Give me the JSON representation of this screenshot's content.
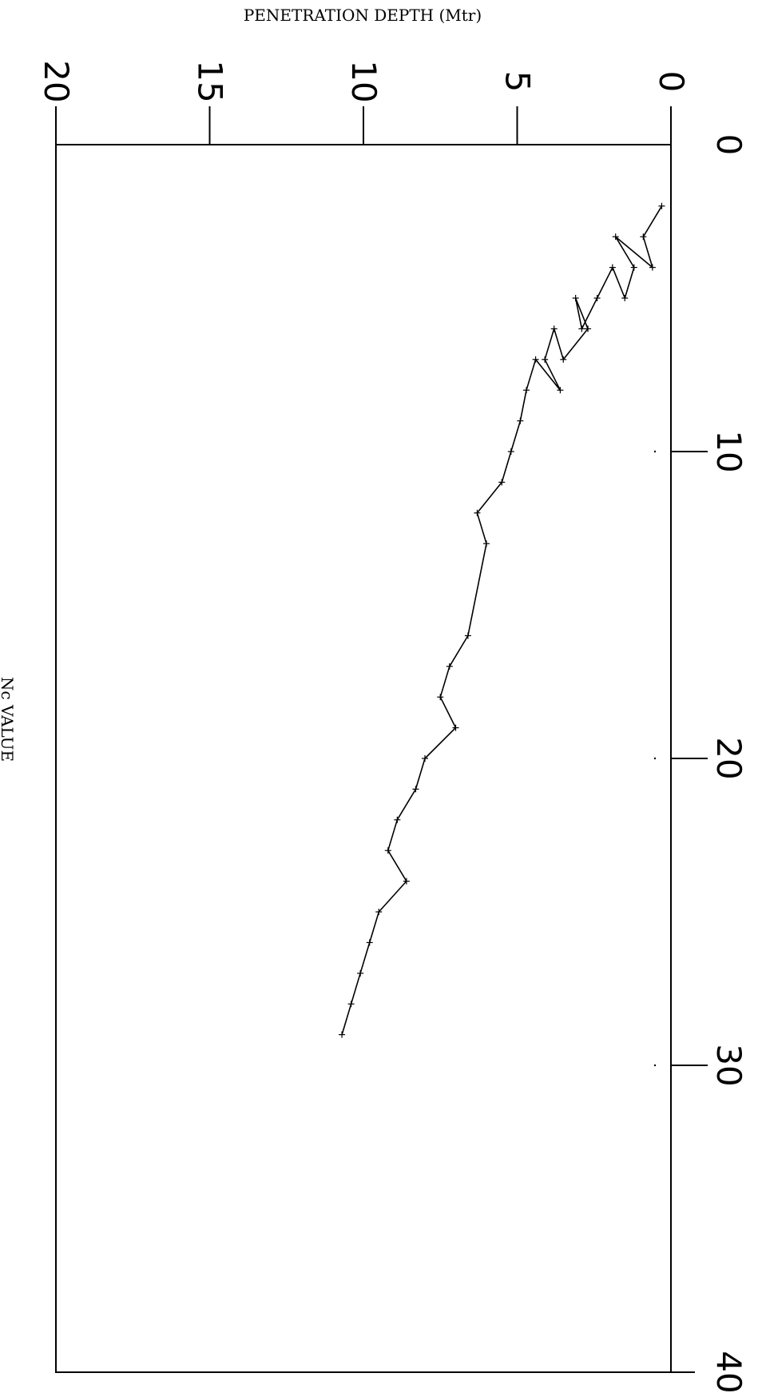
{
  "chart_data": {
    "type": "line",
    "orientation": "rotated-90-clockwise",
    "xlabel": "PENETRATION DEPTH (Mtr)",
    "ylabel": "Nc VALUE",
    "xlim": [
      0,
      40
    ],
    "ylim": [
      20,
      0
    ],
    "x_ticks": [
      0,
      10,
      20,
      30,
      40
    ],
    "y_ticks": [
      0,
      5,
      10,
      15,
      20
    ],
    "x_tick_labels": [
      "0",
      "10",
      "20",
      "30",
      "40"
    ],
    "y_tick_labels": [
      "0",
      "5",
      "10",
      "15",
      "20"
    ],
    "grid": false,
    "series": [
      {
        "x": [
          2,
          3,
          4,
          3,
          4,
          5,
          4,
          5,
          6,
          5,
          6,
          7,
          6,
          7,
          8,
          7,
          8,
          9,
          10,
          11,
          12,
          13,
          16,
          17,
          18,
          19,
          20,
          21,
          22,
          23,
          24,
          25,
          26,
          27,
          28,
          29
        ],
        "y": [
          0.3,
          0.9,
          0.6,
          1.8,
          1.2,
          1.5,
          1.9,
          2.4,
          2.9,
          3.1,
          2.7,
          3.5,
          3.8,
          4.1,
          3.6,
          4.4,
          4.7,
          4.9,
          5.2,
          5.5,
          6.3,
          6.0,
          6.6,
          7.2,
          7.5,
          7.0,
          8.0,
          8.3,
          8.9,
          9.2,
          8.6,
          9.5,
          9.8,
          10.1,
          10.4,
          10.7
        ]
      }
    ]
  }
}
